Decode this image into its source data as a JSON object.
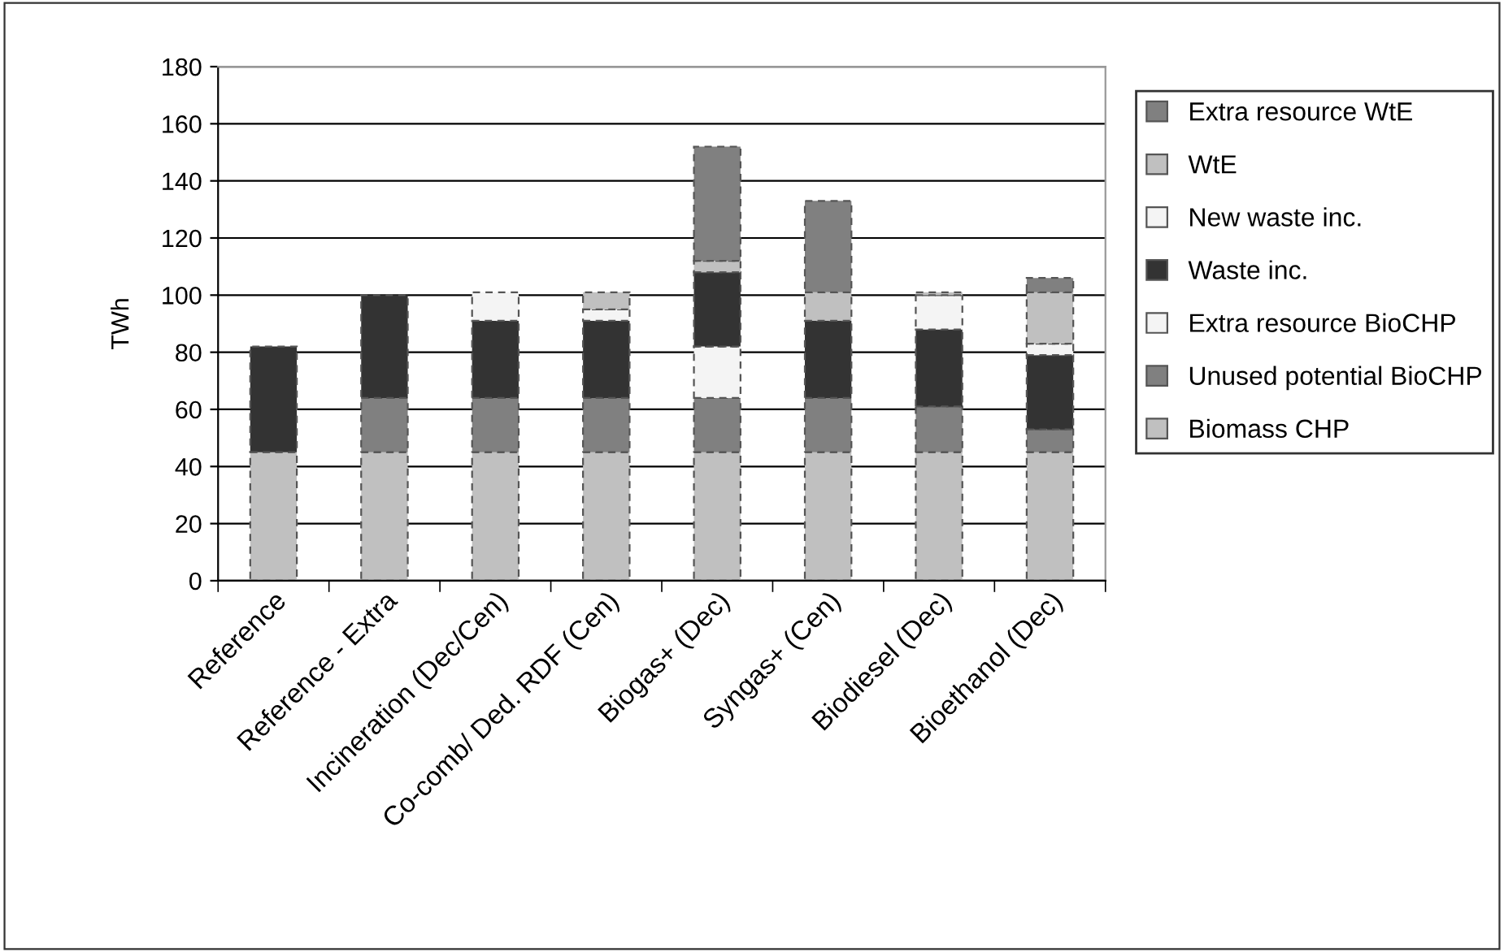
{
  "chart_data": {
    "type": "bar",
    "stacked": true,
    "ylabel": "TWh",
    "categories": [
      "Reference",
      "Reference - Extra",
      "Incineration (Dec/Cen)",
      "Co-comb/ Ded. RDF (Cen)",
      "Biogas+ (Dec)",
      "Syngas+ (Cen)",
      "Biodiesel (Dec)",
      "Bioethanol (Dec)"
    ],
    "series": [
      {
        "name": "Biomass CHP",
        "color": "#c0c0c0",
        "values": [
          45,
          45,
          45,
          45,
          45,
          45,
          45,
          45
        ]
      },
      {
        "name": "Unused potential BioCHP",
        "color": "#808080",
        "values": [
          0,
          19,
          19,
          19,
          19,
          19,
          16,
          8
        ]
      },
      {
        "name": "Extra resource BioCHP",
        "color": "#f4f4f4",
        "values": [
          0,
          0,
          0,
          0,
          18,
          0,
          0,
          0
        ]
      },
      {
        "name": "Waste inc.",
        "color": "#333333",
        "values": [
          37,
          36,
          27,
          27,
          26,
          27,
          27,
          26
        ]
      },
      {
        "name": "New waste inc.",
        "color": "#f4f4f4",
        "values": [
          0,
          0,
          10,
          4,
          0,
          0,
          12,
          4
        ]
      },
      {
        "name": "WtE",
        "color": "#c0c0c0",
        "values": [
          0,
          0,
          0,
          6,
          4,
          10,
          1,
          18
        ]
      },
      {
        "name": "Extra resource WtE",
        "color": "#808080",
        "values": [
          0,
          0,
          0,
          0,
          40,
          32,
          0,
          5
        ]
      }
    ],
    "ylim": [
      0,
      180
    ],
    "yticks": [
      0,
      20,
      40,
      60,
      80,
      100,
      120,
      140,
      160,
      180
    ],
    "grid": "y",
    "legend": "right"
  }
}
